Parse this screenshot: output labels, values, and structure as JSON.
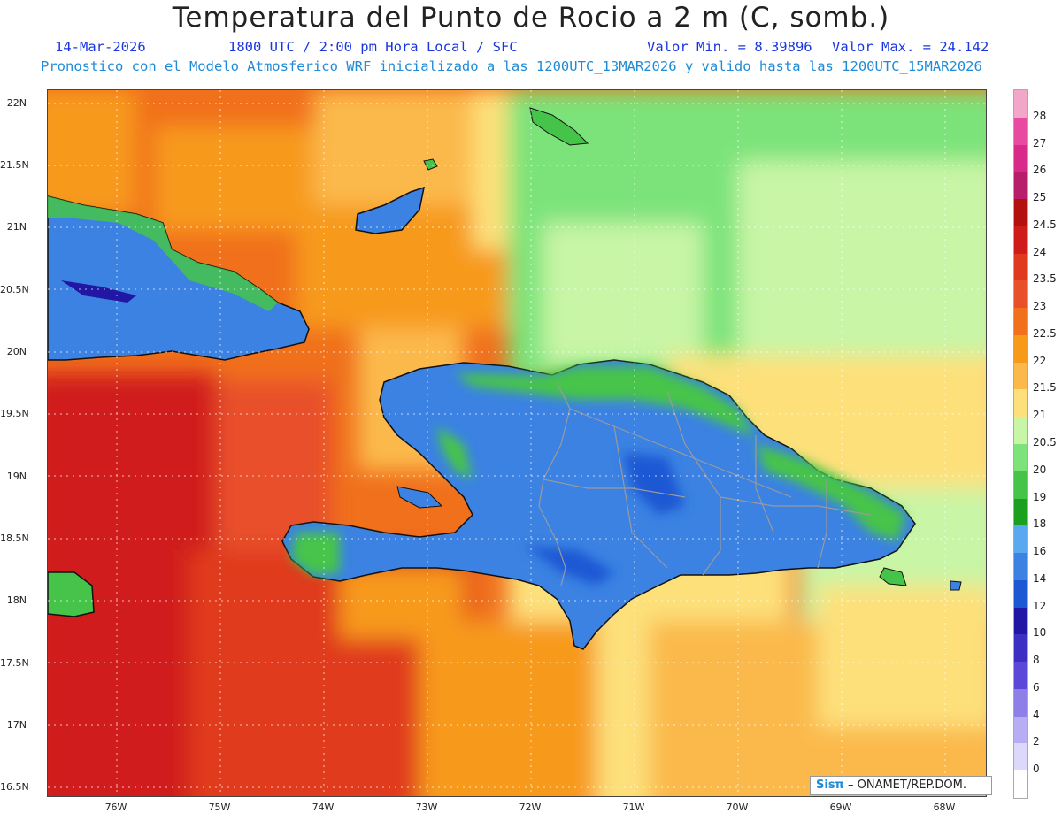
{
  "header": {
    "title": "Temperatura del Punto de Rocio a 2 m (C, somb.)",
    "date": "14-Mar-2026",
    "time": "1800 UTC / 2:00 pm Hora Local / SFC",
    "min": "Valor Min. = 8.39896",
    "max": "Valor Max. = 24.142",
    "forecast": "Pronostico con el Modelo Atmosferico WRF inicializado a las 1200UTC_13MAR2026 y valido hasta las  1200UTC_15MAR2026"
  },
  "axes": {
    "lat_labels": [
      "22N",
      "21.5N",
      "21N",
      "20.5N",
      "20N",
      "19.5N",
      "19N",
      "18.5N",
      "18N",
      "17.5N",
      "17N",
      "16.5N"
    ],
    "lon_labels": [
      "76W",
      "75W",
      "74W",
      "73W",
      "72W",
      "71W",
      "70W",
      "69W",
      "68W"
    ],
    "lat_range": [
      16.4,
      22.1
    ],
    "lon_range": [
      -76.65,
      -67.6
    ]
  },
  "colorbar": {
    "labels": [
      "28",
      "27",
      "26",
      "25",
      "24.5",
      "24",
      "23.5",
      "23",
      "22.5",
      "22",
      "21.5",
      "21",
      "20.5",
      "20",
      "19",
      "18",
      "16",
      "14",
      "12",
      "10",
      "8",
      "6",
      "4",
      "2",
      "0"
    ],
    "colors": [
      "#f2a6c8",
      "#e84aa2",
      "#d82a8a",
      "#b81f6a",
      "#b31010",
      "#d01b1b",
      "#e03a1e",
      "#e8502a",
      "#f0701c",
      "#f79a1a",
      "#fbb94b",
      "#fde07a",
      "#c8f5a6",
      "#7ce37a",
      "#46c44a",
      "#19a01e",
      "#5aa9f0",
      "#3b82e2",
      "#1c58d4",
      "#2216a4",
      "#3d2ec4",
      "#5b48d8",
      "#8d7ee8",
      "#b7adf4",
      "#dcd8fb",
      "#ffffff"
    ]
  },
  "credit": {
    "logo": "Sisπ",
    "text": "– ONAMET/REP.DOM."
  }
}
